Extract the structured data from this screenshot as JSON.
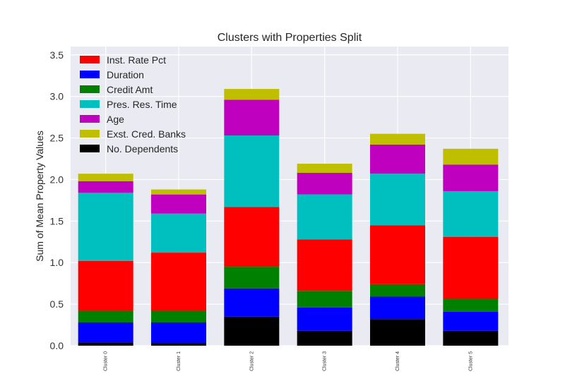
{
  "chart_data": {
    "type": "bar",
    "stacked": true,
    "title": "Clusters with Properties Split",
    "xlabel": "",
    "ylabel": "Sum of Mean Property Values",
    "ylim": [
      0,
      3.6
    ],
    "yticks": [
      "0.0",
      "0.5",
      "1.0",
      "1.5",
      "2.0",
      "2.5",
      "3.0",
      "3.5"
    ],
    "grid": true,
    "legend_position": "top-left",
    "categories": [
      "Cluster 0",
      "Cluster 1",
      "Cluster 2",
      "Cluster 3",
      "Cluster 4",
      "Cluster 5"
    ],
    "series": [
      {
        "name": "No. Dependents",
        "color": "#000000",
        "values": [
          0.04,
          0.03,
          0.35,
          0.18,
          0.32,
          0.18
        ]
      },
      {
        "name": "Duration",
        "color": "#0000ff",
        "values": [
          0.24,
          0.25,
          0.34,
          0.28,
          0.27,
          0.23
        ]
      },
      {
        "name": "Credit Amt",
        "color": "#008000",
        "values": [
          0.14,
          0.14,
          0.26,
          0.2,
          0.15,
          0.15
        ]
      },
      {
        "name": "Inst. Rate Pct",
        "color": "#ff0000",
        "values": [
          0.6,
          0.7,
          0.72,
          0.62,
          0.71,
          0.75
        ]
      },
      {
        "name": "Pres. Res. Time",
        "color": "#00bfbf",
        "values": [
          0.82,
          0.47,
          0.86,
          0.54,
          0.62,
          0.55
        ]
      },
      {
        "name": "Age",
        "color": "#bf00bf",
        "values": [
          0.14,
          0.23,
          0.43,
          0.26,
          0.35,
          0.32
        ]
      },
      {
        "name": "Exst. Cred. Banks",
        "color": "#bfbf00",
        "values": [
          0.09,
          0.06,
          0.13,
          0.11,
          0.13,
          0.19
        ]
      }
    ],
    "legend_order": [
      "Inst. Rate Pct",
      "Duration",
      "Credit Amt",
      "Pres. Res. Time",
      "Age",
      "Exst. Cred. Banks",
      "No. Dependents"
    ]
  }
}
